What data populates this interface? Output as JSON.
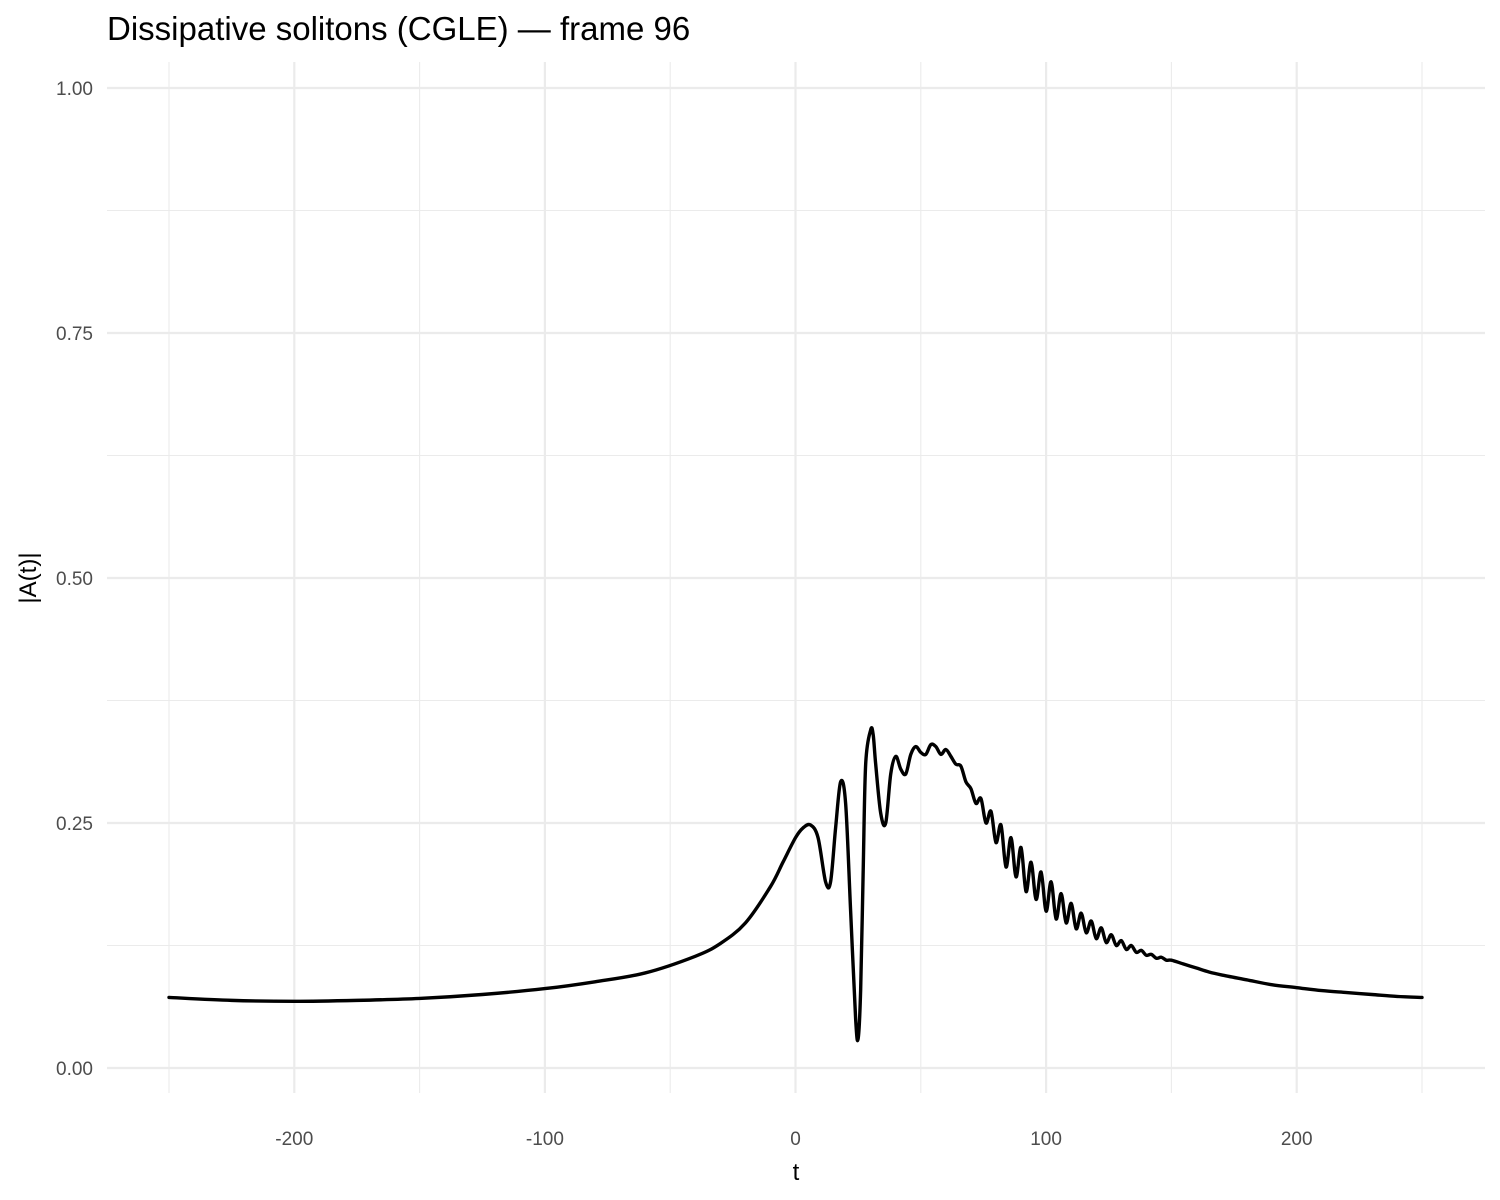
{
  "chart_data": {
    "type": "line",
    "title": "Dissipative solitons (CGLE) — frame 96",
    "xlabel": "t",
    "ylabel": "|A(t)|",
    "xlim": [
      -250,
      250
    ],
    "ylim": [
      0,
      1
    ],
    "x_ticks": [
      -200,
      -100,
      0,
      100,
      200
    ],
    "x_tick_labels": [
      "-200",
      "-100",
      "0",
      "100",
      "200"
    ],
    "y_ticks": [
      0,
      0.25,
      0.5,
      0.75,
      1
    ],
    "y_tick_labels": [
      "0.00",
      "0.25",
      "0.50",
      "0.75",
      "1.00"
    ],
    "grid": true,
    "line_color": "#000000",
    "series": [
      {
        "x": [
          -250,
          -225,
          -200,
          -175,
          -150,
          -125,
          -100,
          -80,
          -60,
          -40,
          -30,
          -20,
          -10,
          -5,
          0,
          3,
          6,
          9,
          12,
          14,
          16,
          18,
          20,
          22,
          24,
          25,
          26,
          27,
          28,
          30,
          31,
          32,
          34,
          36,
          38,
          40,
          42,
          44,
          46,
          48,
          50,
          52,
          54,
          56,
          58,
          60,
          62,
          64,
          66,
          68,
          70,
          72,
          74,
          76,
          78,
          80,
          82,
          84,
          86,
          88,
          90,
          92,
          94,
          96,
          98,
          100,
          102,
          104,
          106,
          108,
          110,
          112,
          114,
          116,
          118,
          120,
          122,
          124,
          126,
          128,
          130,
          132,
          134,
          136,
          138,
          140,
          142,
          144,
          146,
          148,
          150,
          155,
          160,
          165,
          170,
          180,
          190,
          200,
          210,
          220,
          230,
          240,
          250
        ],
        "y": [
          0.072,
          0.069,
          0.068,
          0.069,
          0.071,
          0.075,
          0.081,
          0.088,
          0.097,
          0.114,
          0.127,
          0.148,
          0.185,
          0.21,
          0.235,
          0.245,
          0.248,
          0.235,
          0.19,
          0.19,
          0.245,
          0.292,
          0.27,
          0.16,
          0.05,
          0.03,
          0.08,
          0.2,
          0.31,
          0.345,
          0.34,
          0.31,
          0.26,
          0.25,
          0.3,
          0.318,
          0.305,
          0.3,
          0.32,
          0.328,
          0.322,
          0.32,
          0.33,
          0.328,
          0.32,
          0.325,
          0.318,
          0.31,
          0.308,
          0.292,
          0.285,
          0.27,
          0.275,
          0.25,
          0.262,
          0.23,
          0.248,
          0.205,
          0.235,
          0.195,
          0.225,
          0.18,
          0.21,
          0.172,
          0.2,
          0.16,
          0.19,
          0.152,
          0.178,
          0.148,
          0.168,
          0.142,
          0.158,
          0.138,
          0.15,
          0.132,
          0.143,
          0.128,
          0.136,
          0.125,
          0.13,
          0.121,
          0.125,
          0.118,
          0.12,
          0.115,
          0.116,
          0.112,
          0.113,
          0.11,
          0.11,
          0.106,
          0.102,
          0.098,
          0.095,
          0.09,
          0.085,
          0.082,
          0.079,
          0.077,
          0.075,
          0.073,
          0.072
        ]
      }
    ]
  }
}
